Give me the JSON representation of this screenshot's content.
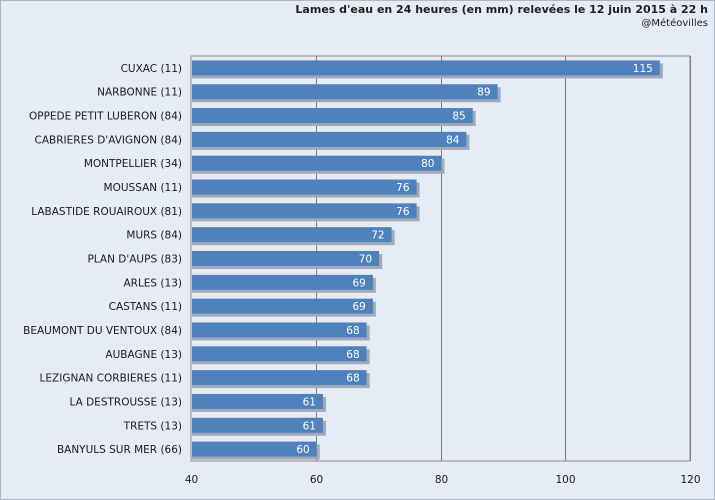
{
  "chart_data": {
    "type": "bar",
    "orientation": "horizontal",
    "title": "Lames d'eau en 24 heures (en mm) relevées le 12 juin 2015 à 22 h",
    "subtitle": "@Météovilles",
    "categories": [
      "CUXAC (11)",
      "NARBONNE (11)",
      "OPPEDE PETIT LUBERON (84)",
      "CABRIERES D'AVIGNON (84)",
      "MONTPELLIER (34)",
      "MOUSSAN (11)",
      "LABASTIDE ROUAIROUX (81)",
      "MURS (84)",
      "PLAN D'AUPS (83)",
      "ARLES (13)",
      "CASTANS (11)",
      "BEAUMONT DU VENTOUX (84)",
      "AUBAGNE (13)",
      "LEZIGNAN CORBIERES (11)",
      "LA DESTROUSSE (13)",
      "TRETS (13)",
      "BANYULS SUR MER (66)"
    ],
    "values": [
      115,
      89,
      85,
      84,
      80,
      76,
      76,
      72,
      70,
      69,
      69,
      68,
      68,
      68,
      61,
      61,
      60
    ],
    "xlim": [
      40,
      120
    ],
    "xticks": [
      40,
      60,
      80,
      100,
      120
    ],
    "xlabel": "",
    "ylabel": "",
    "grid": true,
    "legend": "none",
    "bar_color": "#4f81bd",
    "bar_shadow_color": "#a3aab3",
    "background_color": "#e6ecf6",
    "grid_color": "#7f7f7f"
  }
}
